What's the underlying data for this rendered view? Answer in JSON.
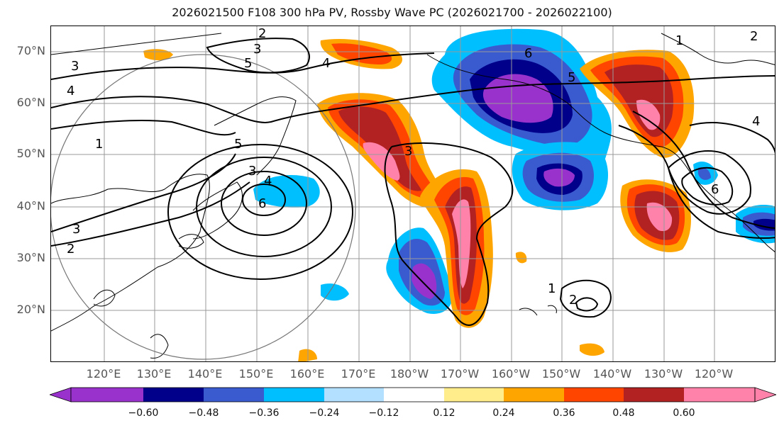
{
  "title": "2026021500 F108 300 hPa PV, Rossby Wave PC (2026021700 - 2026022100)",
  "lat_labels": [
    "70°N",
    "60°N",
    "50°N",
    "40°N",
    "30°N",
    "20°N"
  ],
  "lon_labels": [
    "120°E",
    "130°E",
    "140°E",
    "150°E",
    "160°E",
    "170°E",
    "180°W",
    "170°W",
    "160°W",
    "150°W",
    "140°W",
    "130°W",
    "120°W"
  ],
  "colorbar": {
    "ticks": [
      "−0.60",
      "−0.48",
      "−0.36",
      "−0.24",
      "−0.12",
      "0.12",
      "0.24",
      "0.36",
      "0.48",
      "0.60"
    ],
    "colors": [
      "#9932cc",
      "#00008b",
      "#3a5bd0",
      "#00bfff",
      "#b3e0ff",
      "#ffffff",
      "#ffec8b",
      "#ffa500",
      "#ff4500",
      "#b22222",
      "#ff82ab"
    ]
  },
  "contour_labels": [
    "2",
    "3",
    "5",
    "4",
    "6",
    "1",
    "2",
    "3",
    "4",
    "5",
    "6",
    "1",
    "2",
    "3",
    "3",
    "4",
    "5",
    "6",
    "1",
    "2",
    "3",
    "4"
  ]
}
